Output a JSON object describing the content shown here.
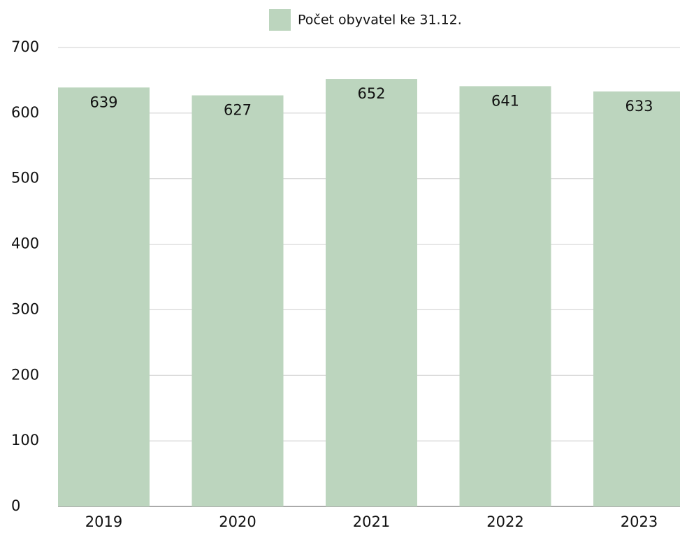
{
  "chart_data": {
    "type": "bar",
    "categories": [
      "2019",
      "2020",
      "2021",
      "2022",
      "2023"
    ],
    "series": [
      {
        "name": "Počet obyvatel ke 31.12.",
        "color": "#bcd5be",
        "values": [
          639,
          627,
          652,
          641,
          633
        ]
      }
    ],
    "ylim": [
      0,
      700
    ],
    "yticks": [
      0,
      100,
      200,
      300,
      400,
      500,
      600,
      700
    ],
    "grid": true,
    "legend": "top"
  }
}
